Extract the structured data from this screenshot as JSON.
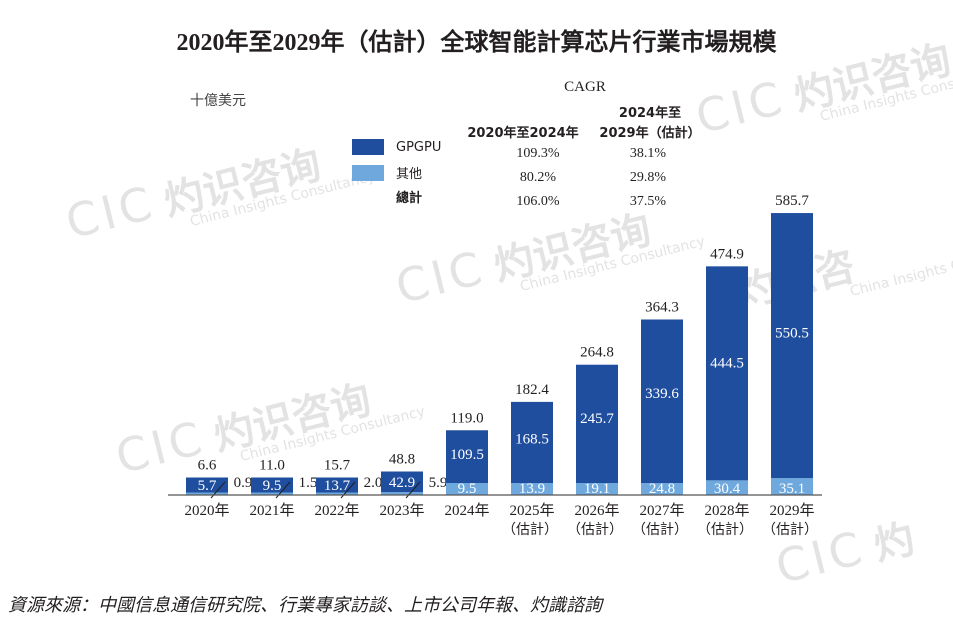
{
  "title": "2020年至2029年（估計）全球智能計算芯片行業市場規模",
  "unit": "十億美元",
  "legend": [
    {
      "label": "GPGPU",
      "color": "#1f4e9e"
    },
    {
      "label": "其他",
      "color": "#6fa8dc"
    },
    {
      "label": "總計"
    }
  ],
  "cagr": {
    "title": "CAGR",
    "col1_header": "2020年至2024年",
    "col2_header_line1": "2024年至",
    "col2_header_line2": "2029年（估計）",
    "col1": [
      "109.3%",
      "80.2%",
      "106.0%"
    ],
    "col2": [
      "38.1%",
      "29.8%",
      "37.5%"
    ]
  },
  "source": "資源來源：中國信息通信研究院、行業專家訪談、上市公司年報、灼識諮詢",
  "watermark": {
    "logo": "CIC",
    "cn": "灼识咨询",
    "en": "China Insights Consultancy"
  },
  "chart_data": {
    "type": "bar",
    "stacked": true,
    "title": "2020年至2029年（估計）全球智能計算芯片行業市場規模",
    "ylabel": "十億美元",
    "categories": [
      "2020年",
      "2021年",
      "2022年",
      "2023年",
      "2024年",
      "2025年",
      "2026年",
      "2027年",
      "2028年",
      "2029年"
    ],
    "category_sublabels": [
      "",
      "",
      "",
      "",
      "",
      "（估計）",
      "（估計）",
      "（估計）",
      "（估計）",
      "（估計）"
    ],
    "series": [
      {
        "name": "其他",
        "color": "#6fa8dc",
        "values": [
          0.9,
          1.5,
          2.0,
          5.9,
          9.5,
          13.9,
          19.1,
          24.8,
          30.4,
          35.1
        ],
        "labels": [
          "0.9",
          "1.5",
          "2.0",
          "5.9",
          "9.5",
          "13.9",
          "19.1",
          "24.8",
          "30.4",
          "35.1"
        ]
      },
      {
        "name": "GPGPU",
        "color": "#1f4e9e",
        "values": [
          5.7,
          9.5,
          13.7,
          42.9,
          109.5,
          168.5,
          245.7,
          339.6,
          444.5,
          550.5
        ],
        "labels": [
          "5.7",
          "9.5",
          "13.7",
          "42.9",
          "109.5",
          "168.5",
          "245.7",
          "339.6",
          "444.5",
          "550.5"
        ]
      }
    ],
    "totals": [
      6.6,
      11.0,
      15.7,
      48.8,
      119.0,
      182.4,
      264.8,
      364.3,
      474.9,
      585.7
    ],
    "total_labels": [
      "6.6",
      "11.0",
      "15.7",
      "48.8",
      "119.0",
      "182.4",
      "264.8",
      "364.3",
      "474.9",
      "585.7"
    ],
    "ylim": [
      0,
      600
    ],
    "grid": false
  }
}
